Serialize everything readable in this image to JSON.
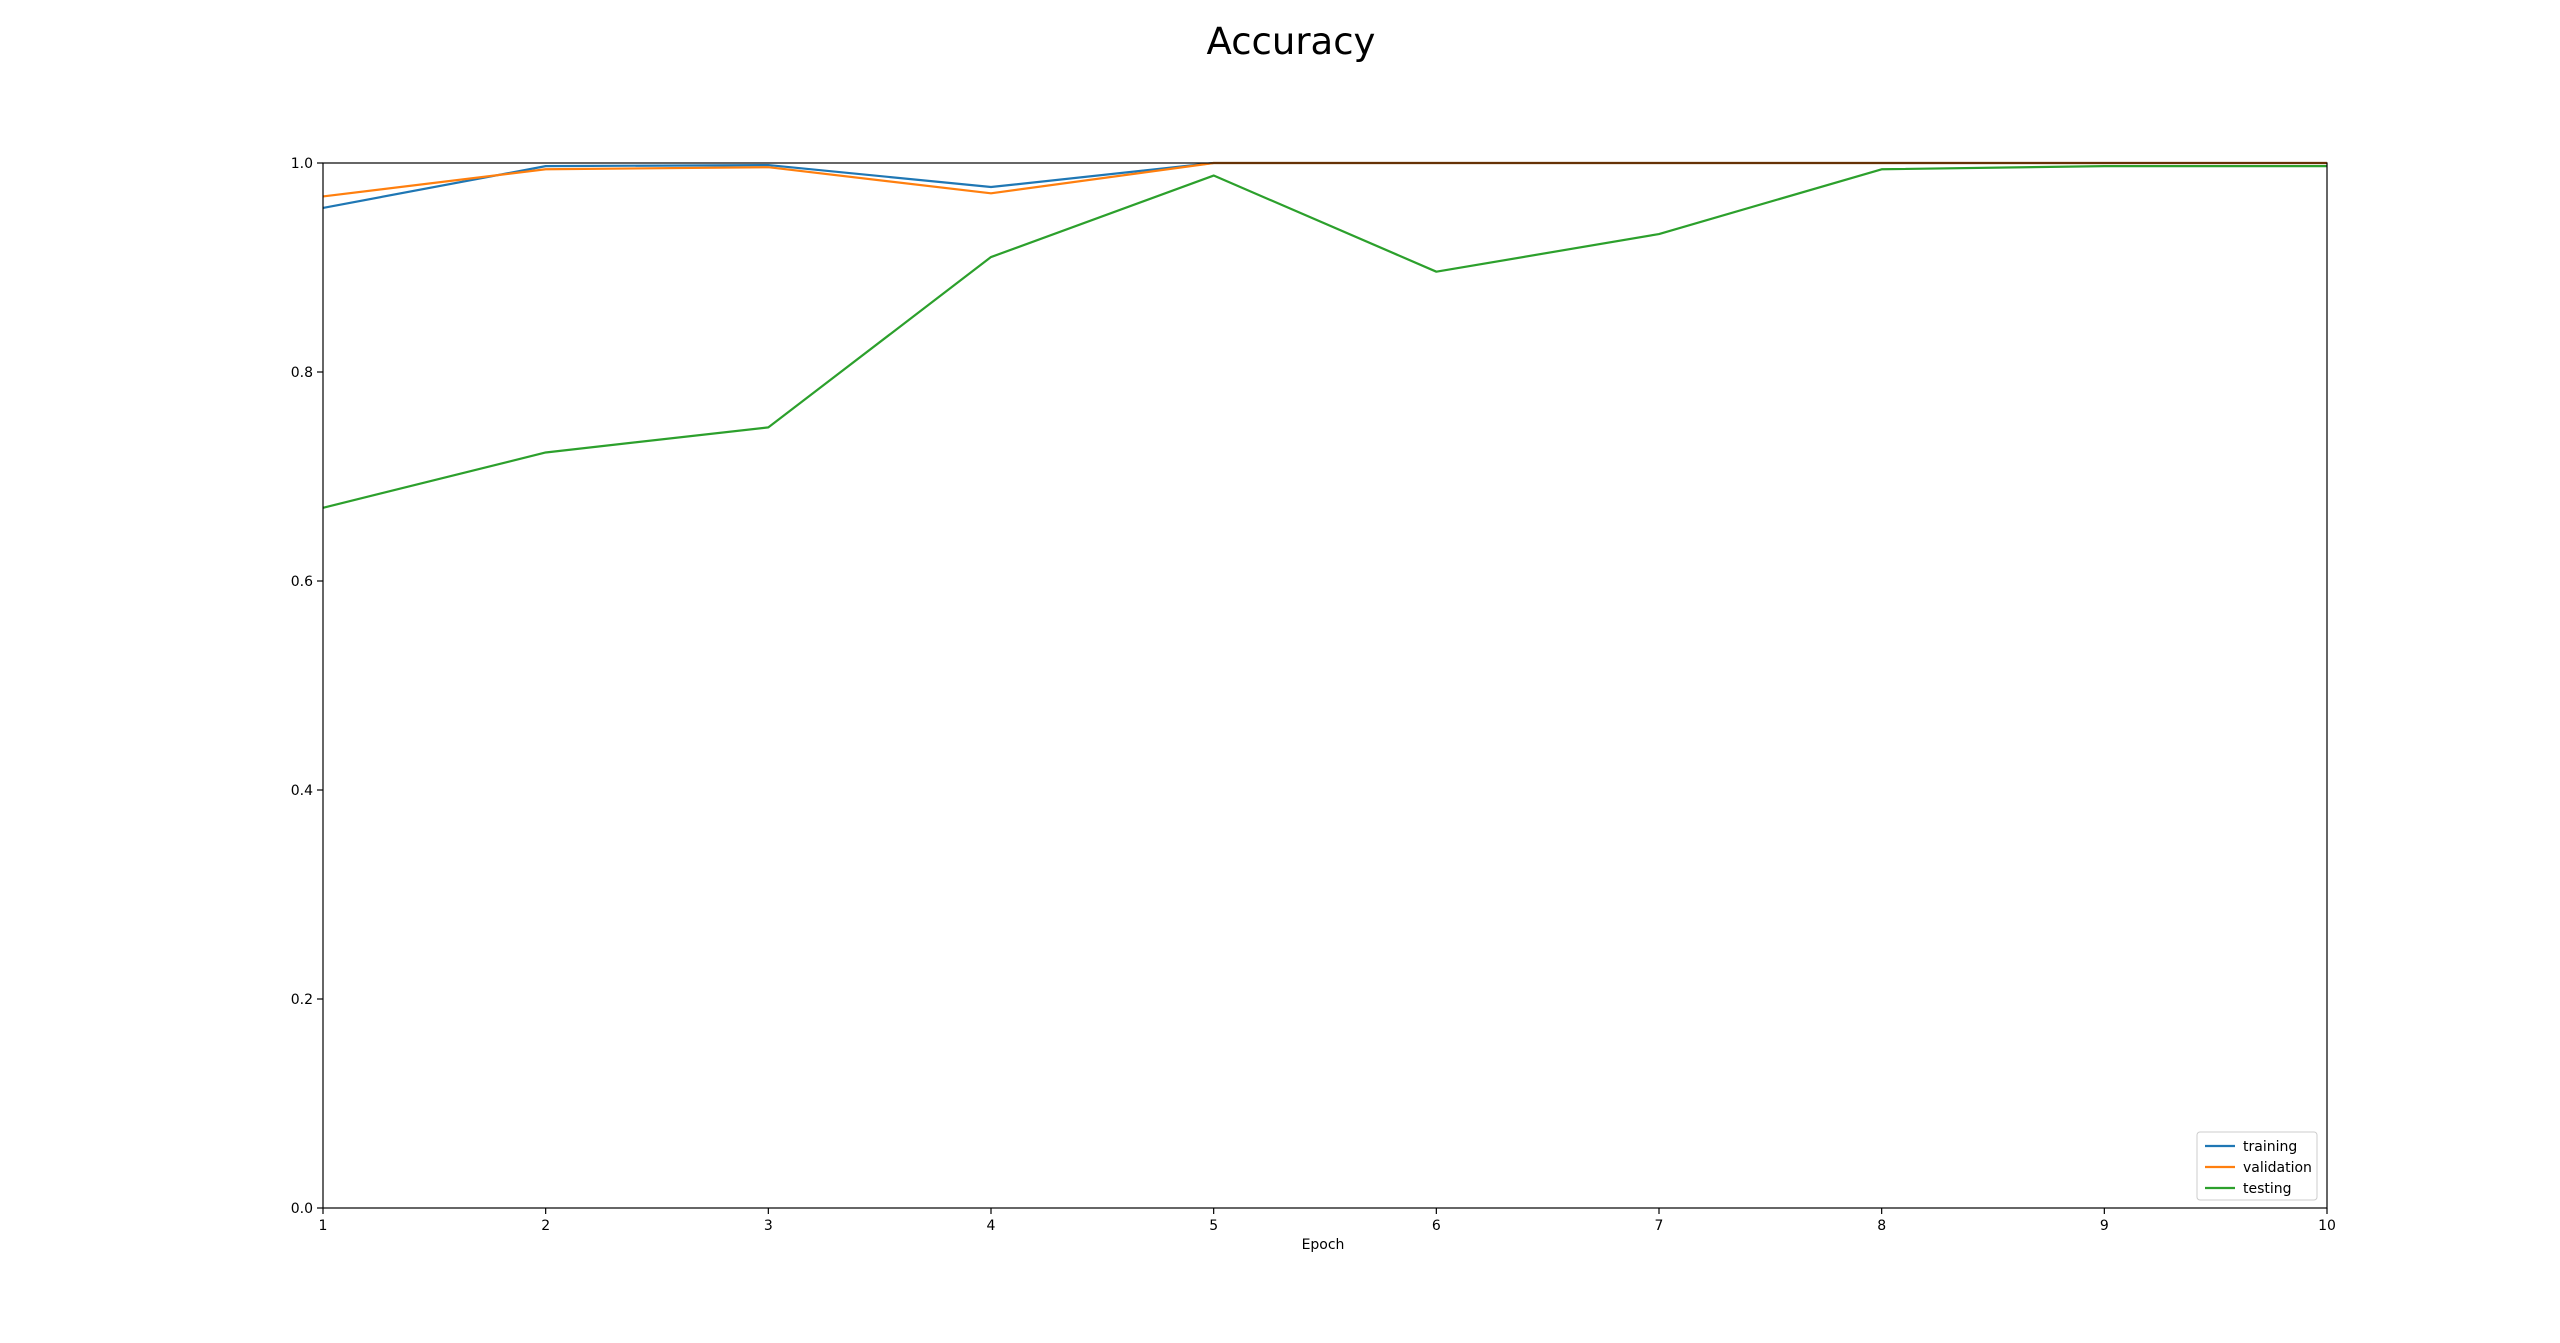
{
  "chart_data": {
    "type": "line",
    "title": "Accuracy",
    "xlabel": "Epoch",
    "ylabel": "",
    "x": [
      1,
      2,
      3,
      4,
      5,
      6,
      7,
      8,
      9,
      10
    ],
    "xlim": [
      1,
      10
    ],
    "ylim": [
      0.0,
      1.0
    ],
    "xticks": [
      "1",
      "2",
      "3",
      "4",
      "5",
      "6",
      "7",
      "8",
      "9",
      "10"
    ],
    "yticks": [
      "0.0",
      "0.2",
      "0.4",
      "0.6",
      "0.8",
      "1.0"
    ],
    "grid": false,
    "legend_position": "lower-right",
    "series": [
      {
        "name": "training",
        "color": "#1f77b4",
        "values": [
          0.957,
          0.997,
          0.998,
          0.977,
          1.0,
          1.0,
          1.0,
          1.0,
          1.0,
          1.0
        ]
      },
      {
        "name": "validation",
        "color": "#ff7f0e",
        "values": [
          0.968,
          0.994,
          0.996,
          0.971,
          1.0,
          1.0,
          1.0,
          1.0,
          1.0,
          1.0
        ]
      },
      {
        "name": "testing",
        "color": "#2ca02c",
        "values": [
          0.67,
          0.723,
          0.747,
          0.91,
          0.988,
          0.896,
          0.932,
          0.994,
          0.997,
          0.997
        ]
      }
    ]
  }
}
